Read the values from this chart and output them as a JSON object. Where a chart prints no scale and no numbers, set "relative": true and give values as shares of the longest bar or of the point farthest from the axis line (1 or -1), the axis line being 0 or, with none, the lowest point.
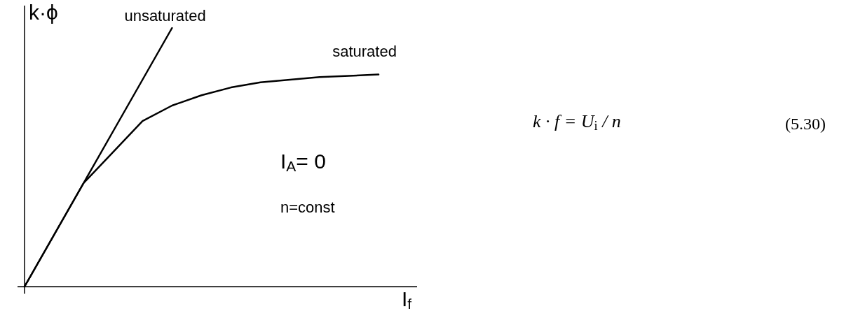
{
  "chart_data": {
    "type": "line",
    "relative": true,
    "xlabel": "I$_{f}$",
    "ylabel": "k·ϕ",
    "grid": false,
    "legend": false,
    "marker": "none",
    "line_style": "solid",
    "categories": [
      null,
      null,
      null,
      null,
      null,
      null,
      null,
      null,
      null,
      null,
      null,
      null,
      null
    ],
    "series": [
      {
        "name": "unsaturated",
        "color": "#000000",
        "values": [
          0,
          0.2,
          0.4,
          0.6,
          0.8,
          1,
          null,
          null,
          null,
          null,
          null,
          null,
          null
        ]
      },
      {
        "name": "saturated",
        "color": "#000000",
        "values": [
          0,
          0.2,
          0.4,
          0.52,
          0.64,
          0.7,
          0.74,
          0.77,
          0.79,
          0.8,
          0.81,
          0.815,
          0.82
        ]
      }
    ],
    "annotations": [
      "I$_{A}$= 0",
      "n=const",
      "k · f = U$_{i}$ / n",
      "(5.30)"
    ]
  }
}
